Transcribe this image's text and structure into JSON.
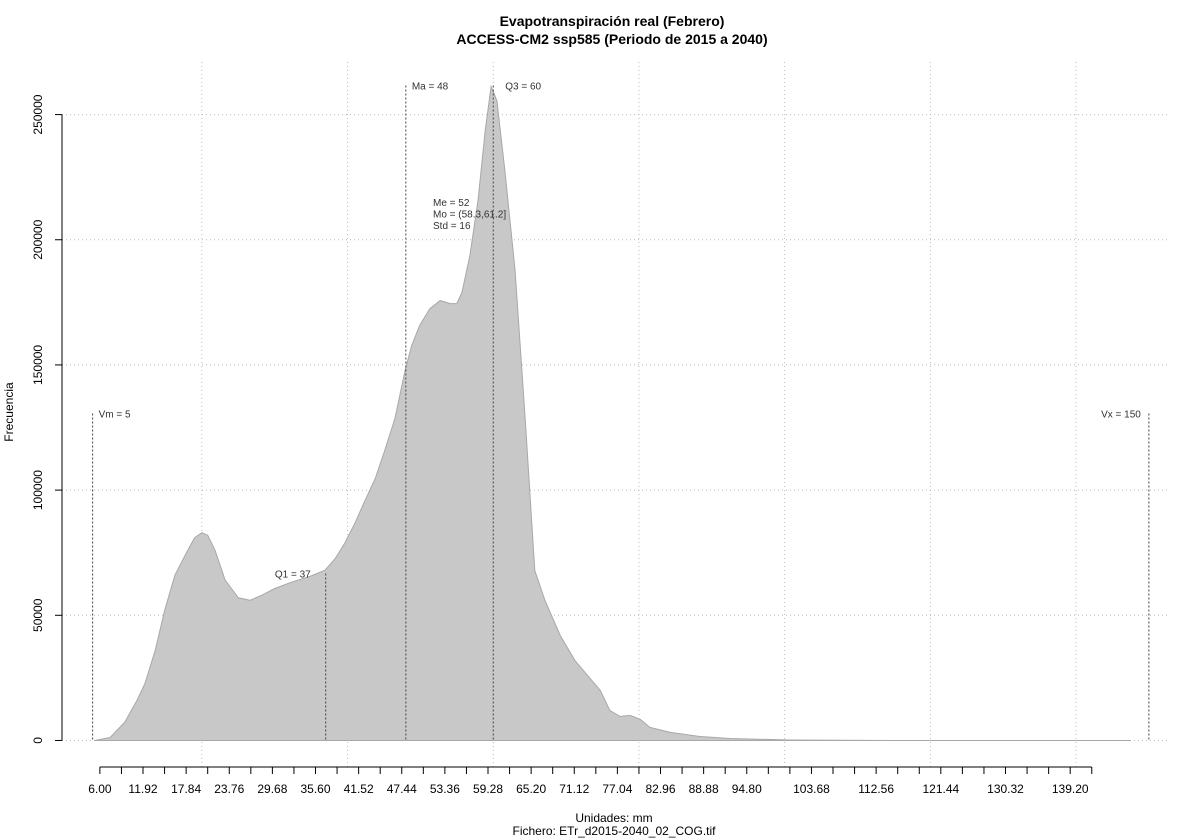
{
  "chart_data": {
    "type": "area",
    "title": "Evapotranspiración real (Febrero)",
    "subtitle": "ACCESS-CM2 ssp585 (Periodo de 2015 a 2040)",
    "x_label": "Unidades: mm",
    "caption": "Fichero: ETr_d2015-2040_02_COG.tif",
    "y_label": "Frecuencia",
    "color": "#c8c8c8",
    "grid": true,
    "xlim": [
      0.8,
      152.9
    ],
    "ylim": [
      -11000,
      271000
    ],
    "x": [
      5.3,
      7.4,
      9.4,
      11.1,
      12.2,
      13.6,
      14.9,
      16.3,
      17.7,
      19.0,
      20.0,
      20.8,
      21.8,
      23.2,
      25.0,
      26.6,
      28.2,
      30.0,
      32.1,
      34.8,
      36.9,
      38.3,
      39.6,
      41.0,
      42.4,
      43.8,
      45.1,
      46.5,
      47.9,
      48.8,
      49.9,
      51.3,
      52.7,
      54.1,
      55.0,
      55.7,
      56.8,
      57.9,
      58.9,
      59.7,
      60.5,
      61.6,
      63.0,
      64.4,
      65.7,
      67.1,
      69.2,
      71.2,
      73.3,
      74.7,
      76.0,
      77.4,
      78.8,
      80.2,
      81.5,
      84.3,
      88.4,
      92.5,
      100.8,
      115.9,
      147.4
    ],
    "values": [
      0,
      1200,
      7200,
      16000,
      22800,
      36000,
      52000,
      66000,
      74000,
      81000,
      83000,
      82000,
      76000,
      64000,
      57000,
      56000,
      58000,
      60700,
      63000,
      65500,
      68000,
      72700,
      78700,
      86700,
      95900,
      104600,
      115800,
      128600,
      147800,
      157800,
      165800,
      172500,
      175700,
      174500,
      174500,
      178900,
      193700,
      215700,
      243600,
      261200,
      255600,
      227600,
      187700,
      127800,
      67900,
      55900,
      41900,
      32000,
      24800,
      20000,
      12000,
      9600,
      10000,
      8400,
      5200,
      3200,
      1600,
      800,
      200,
      0,
      0
    ],
    "yticks": [
      0,
      50000,
      100000,
      150000,
      200000,
      250000
    ],
    "xgrid": [
      20,
      40,
      60,
      80,
      100,
      120,
      140
    ],
    "xticks": [
      {
        "value": 6.0,
        "label": "6.00"
      },
      {
        "value": 8.96,
        "label": null
      },
      {
        "value": 11.92,
        "label": "11.92"
      },
      {
        "value": 14.88,
        "label": null
      },
      {
        "value": 17.84,
        "label": "17.84"
      },
      {
        "value": 20.8,
        "label": null
      },
      {
        "value": 23.76,
        "label": "23.76"
      },
      {
        "value": 26.72,
        "label": null
      },
      {
        "value": 29.68,
        "label": "29.68"
      },
      {
        "value": 32.64,
        "label": null
      },
      {
        "value": 35.6,
        "label": "35.60"
      },
      {
        "value": 38.56,
        "label": null
      },
      {
        "value": 41.52,
        "label": "41.52"
      },
      {
        "value": 44.48,
        "label": null
      },
      {
        "value": 47.44,
        "label": "47.44"
      },
      {
        "value": 50.4,
        "label": null
      },
      {
        "value": 53.36,
        "label": "53.36"
      },
      {
        "value": 56.32,
        "label": null
      },
      {
        "value": 59.28,
        "label": "59.28"
      },
      {
        "value": 62.24,
        "label": null
      },
      {
        "value": 65.2,
        "label": "65.20"
      },
      {
        "value": 68.16,
        "label": null
      },
      {
        "value": 71.12,
        "label": "71.12"
      },
      {
        "value": 74.08,
        "label": null
      },
      {
        "value": 77.04,
        "label": "77.04"
      },
      {
        "value": 80.0,
        "label": null
      },
      {
        "value": 82.96,
        "label": "82.96"
      },
      {
        "value": 85.92,
        "label": null
      },
      {
        "value": 88.88,
        "label": "88.88"
      },
      {
        "value": 91.84,
        "label": null
      },
      {
        "value": 94.8,
        "label": "94.80"
      },
      {
        "value": 97.76,
        "label": null
      },
      {
        "value": 100.72,
        "label": null
      },
      {
        "value": 103.68,
        "label": "103.68"
      },
      {
        "value": 106.64,
        "label": null
      },
      {
        "value": 109.6,
        "label": null
      },
      {
        "value": 112.56,
        "label": "112.56"
      },
      {
        "value": 115.52,
        "label": null
      },
      {
        "value": 118.48,
        "label": null
      },
      {
        "value": 121.44,
        "label": "121.44"
      },
      {
        "value": 124.4,
        "label": null
      },
      {
        "value": 127.36,
        "label": null
      },
      {
        "value": 130.32,
        "label": "130.32"
      },
      {
        "value": 133.28,
        "label": null
      },
      {
        "value": 136.24,
        "label": null
      },
      {
        "value": 139.2,
        "label": "139.20"
      },
      {
        "value": 142.16,
        "label": null
      }
    ],
    "markers": [
      {
        "label": "Vm = 5",
        "x": 5,
        "y": 130600
      },
      {
        "label": "Q1 = 37",
        "x": 37,
        "y": 66700
      },
      {
        "label": "Ma = 48",
        "x": 48,
        "y": 261600
      },
      {
        "label": "Q3 = 60",
        "x": 60,
        "y": 261600
      },
      {
        "label": "Vx = 150",
        "x": 150,
        "y": 130600
      }
    ],
    "stats": [
      "Me = 52",
      "Mo = (58.3,61.2]",
      "Std = 16"
    ]
  }
}
